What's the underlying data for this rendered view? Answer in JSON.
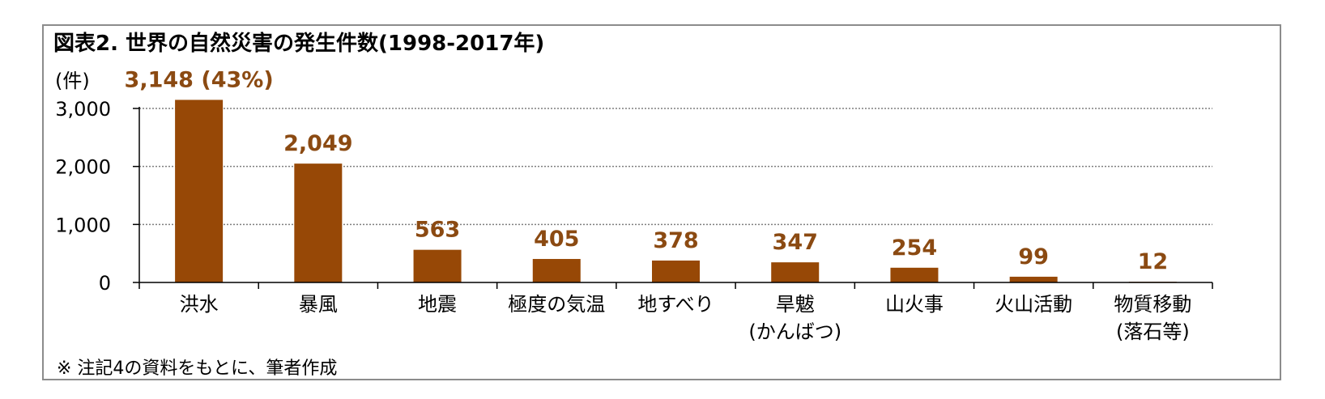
{
  "chart_data": {
    "type": "bar",
    "title": "図表2. 世界の自然災害の発生件数(1998-2017年)",
    "ylabel": "(件)",
    "xlabel": "",
    "categories": [
      [
        "洪水"
      ],
      [
        "暴風"
      ],
      [
        "地震"
      ],
      [
        "極度の気温"
      ],
      [
        "地すべり"
      ],
      [
        "旱魃",
        "(かんばつ)"
      ],
      [
        "山火事"
      ],
      [
        "火山活動"
      ],
      [
        "物質移動",
        "(落石等)"
      ]
    ],
    "values": [
      3148,
      2049,
      563,
      405,
      378,
      347,
      254,
      99,
      12
    ],
    "data_labels": [
      "3,148 (43%)",
      "2,049",
      "563",
      "405",
      "378",
      "347",
      "254",
      "99",
      "12"
    ],
    "ylim": [
      0,
      3000
    ],
    "yticks": [
      0,
      1000,
      2000,
      3000
    ],
    "ytick_labels": [
      "0",
      "1,000",
      "2,000",
      "3,000"
    ],
    "grid": "horizontal-dotted",
    "bar_color": "#974806",
    "label_color": "#8b4a12",
    "note": "※ 注記4の資料をもとに、筆者作成"
  }
}
